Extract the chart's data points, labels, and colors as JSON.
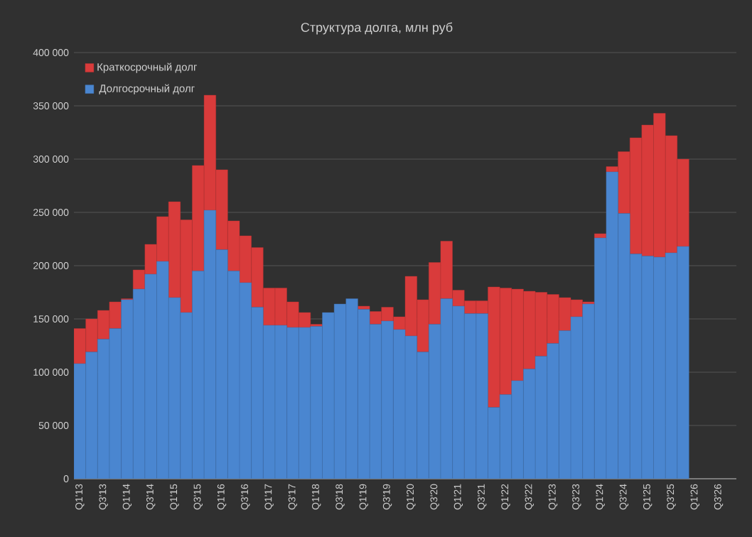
{
  "chart_data": {
    "type": "bar",
    "title": "Структура долга, млн руб",
    "stacked": true,
    "grid": "y",
    "legend": "top left",
    "categories": [
      "Q1'13",
      null,
      "Q3'13",
      null,
      "Q1'14",
      null,
      "Q3'14",
      null,
      "Q1'15",
      null,
      "Q3'15",
      null,
      "Q1'16",
      null,
      "Q3'16",
      null,
      "Q1'17",
      null,
      "Q3'17",
      null,
      "Q1'18",
      null,
      "Q3'18",
      null,
      "Q1'19",
      null,
      "Q3'19",
      null,
      "Q1'20",
      null,
      "Q3'20",
      null,
      "Q1'21",
      null,
      "Q3'21",
      null,
      "Q1'22",
      null,
      "Q3'22",
      null,
      "Q1'23",
      null,
      "Q3'23",
      null,
      "Q1'24",
      null,
      "Q3'24",
      null,
      "Q1'25",
      null,
      "Q3'25",
      null,
      "Q1'26",
      null,
      "Q3'26",
      null
    ],
    "series": [
      {
        "name": "Долгосрочный долг",
        "color": "#4a86d0",
        "values": [
          108000,
          119000,
          131000,
          141000,
          168000,
          178000,
          192000,
          204000,
          170000,
          156000,
          195000,
          252000,
          215000,
          195000,
          184000,
          161000,
          144000,
          144000,
          142000,
          142000,
          143000,
          156000,
          164000,
          169000,
          159000,
          145000,
          148000,
          140000,
          134000,
          119000,
          145000,
          169000,
          162000,
          155000,
          155000,
          67000,
          79000,
          92000,
          103000,
          115000,
          127000,
          139000,
          152000,
          164000,
          226000,
          288000,
          249000,
          211000,
          209000,
          208000,
          212000,
          218000,
          null,
          null,
          null,
          null
        ]
      },
      {
        "name": "Краткосрочный долг",
        "color": "#d93b3b",
        "values": [
          33000,
          31000,
          27000,
          25000,
          1000,
          18000,
          28000,
          42000,
          90000,
          87000,
          99000,
          108000,
          75000,
          47000,
          44000,
          56000,
          35000,
          35000,
          24000,
          14000,
          2000,
          0,
          0,
          0,
          3000,
          12000,
          13000,
          12000,
          56000,
          49000,
          58000,
          54000,
          15000,
          12000,
          12000,
          113000,
          100000,
          86000,
          73000,
          60000,
          46000,
          31000,
          16000,
          2000,
          4000,
          5000,
          58000,
          109000,
          123000,
          135000,
          110000,
          82000,
          null,
          null,
          null,
          null
        ]
      }
    ],
    "ylim": [
      0,
      400000
    ],
    "yticks": [
      {
        "value": 0,
        "label": "0"
      },
      {
        "value": 50000,
        "label": "50 000"
      },
      {
        "value": 100000,
        "label": "100 000"
      },
      {
        "value": 150000,
        "label": "150 000"
      },
      {
        "value": 200000,
        "label": "200 000"
      },
      {
        "value": 250000,
        "label": "250 000"
      },
      {
        "value": 300000,
        "label": "300 000"
      },
      {
        "value": 350000,
        "label": "350 000"
      },
      {
        "value": 400000,
        "label": "400 000"
      }
    ]
  }
}
